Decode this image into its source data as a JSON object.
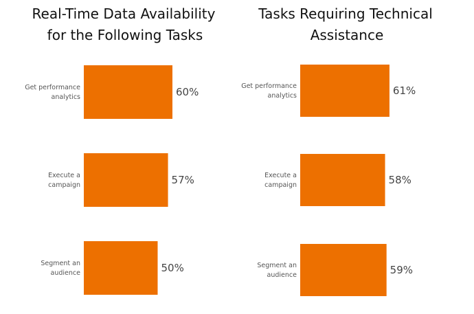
{
  "colors": {
    "bar": "#ED7000",
    "background": "#FFFFFF",
    "title_text": "#111111",
    "category_text": "#555555",
    "value_text": "#444444"
  },
  "chart_data": [
    {
      "type": "bar",
      "orientation": "horizontal",
      "title": "Real-Time Data Availability for the Following Tasks",
      "title_lines": [
        "Real-Time Data Availability",
        "for the Following Tasks"
      ],
      "categories": [
        "Get performance analytics",
        "Execute a campaign",
        "Segment an audience"
      ],
      "category_lines": [
        [
          "Get performance",
          "analytics"
        ],
        [
          "Execute a",
          "campaign"
        ],
        [
          "Segment an",
          "audience"
        ]
      ],
      "values": [
        60,
        57,
        50
      ],
      "value_labels": [
        "60%",
        "57%",
        "50%"
      ],
      "unit": "%",
      "grid": false,
      "legend": "none"
    },
    {
      "type": "bar",
      "orientation": "horizontal",
      "title": "Tasks Requiring Technical Assistance",
      "title_lines": [
        "Tasks Requiring Technical",
        "Assistance"
      ],
      "categories": [
        "Get performance analytics",
        "Execute a campaign",
        "Segment an audience"
      ],
      "category_lines": [
        [
          "Get performance",
          "analytics"
        ],
        [
          "Execute a",
          "campaign"
        ],
        [
          "Segment an",
          "audience"
        ]
      ],
      "values": [
        61,
        58,
        59
      ],
      "value_labels": [
        "61%",
        "58%",
        "59%"
      ],
      "unit": "%",
      "grid": false,
      "legend": "none"
    }
  ]
}
